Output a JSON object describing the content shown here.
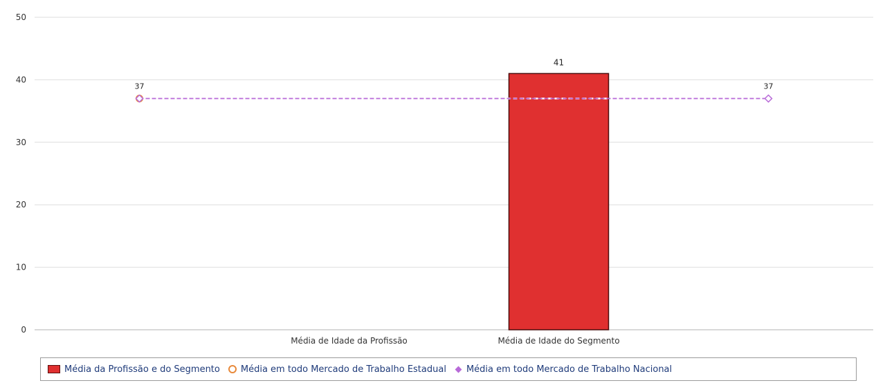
{
  "chart_data": {
    "type": "bar",
    "categories": [
      "",
      "Média de Idade da Profissão",
      "Média de Idade do Segmento",
      ""
    ],
    "ylim": [
      0,
      50
    ],
    "yticks": [
      0,
      10,
      20,
      30,
      40,
      50
    ],
    "grid": true,
    "legend_position": "bottom",
    "series": [
      {
        "name": "Média da Profissão e do Segmento",
        "kind": "bar",
        "color": "#e03030",
        "values": [
          null,
          null,
          41,
          null
        ],
        "labels": [
          "",
          "",
          "41",
          ""
        ]
      },
      {
        "name": "Média em todo Mercado de Trabalho Estadual",
        "kind": "line",
        "color": "#e8893a",
        "marker": "circle",
        "values": [
          37,
          null,
          null,
          null
        ],
        "labels": [
          "37",
          "",
          "",
          ""
        ]
      },
      {
        "name": "Média em todo Mercado de Trabalho Nacional",
        "kind": "line",
        "color": "#b86ad8",
        "marker": "diamond",
        "style": "dashed",
        "values": [
          37,
          37,
          37,
          37
        ],
        "labels": [
          "",
          "",
          "",
          "37"
        ]
      }
    ]
  }
}
